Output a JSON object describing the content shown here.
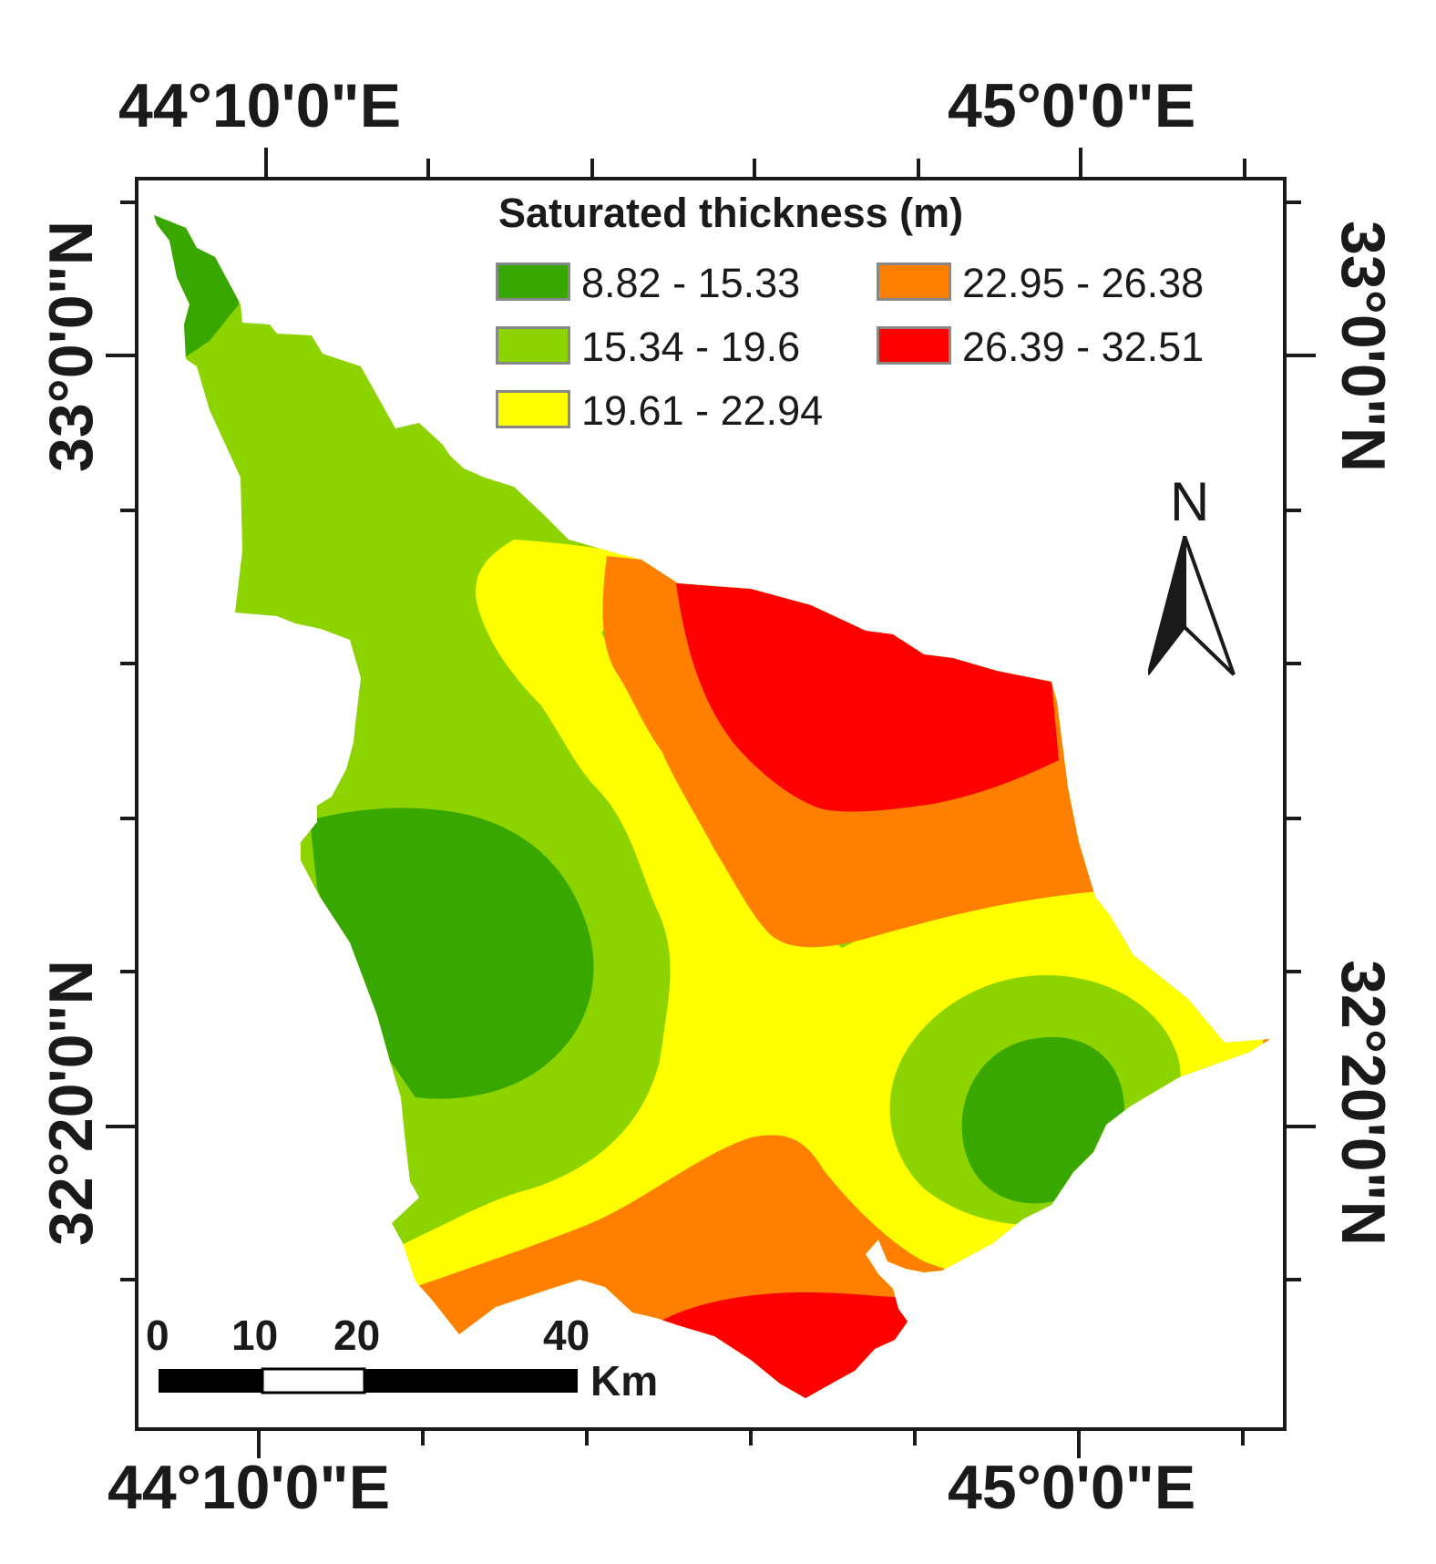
{
  "axes": {
    "top": [
      "44°10'0\"E",
      "45°0'0\"E"
    ],
    "bottom": [
      "44°10'0\"E",
      "45°0'0\"E"
    ],
    "left": [
      "33°0'0\"N",
      "32°20'0\"N"
    ],
    "right": [
      "33°0'0\"N",
      "32°20'0\"N"
    ]
  },
  "legend": {
    "title": "Saturated thickness (m)",
    "classes": [
      {
        "label": "8.82 - 15.33",
        "color": "#38a800"
      },
      {
        "label": "15.34 - 19.6",
        "color": "#8cd300"
      },
      {
        "label": "19.61 - 22.94",
        "color": "#ffff00"
      },
      {
        "label": "22.95 - 26.38",
        "color": "#ff8000"
      },
      {
        "label": "26.39 - 32.51",
        "color": "#ff0000"
      }
    ]
  },
  "north_arrow": {
    "label": "N"
  },
  "scale_bar": {
    "ticks": [
      "0",
      "10",
      "20",
      "40"
    ],
    "unit": "Km"
  }
}
